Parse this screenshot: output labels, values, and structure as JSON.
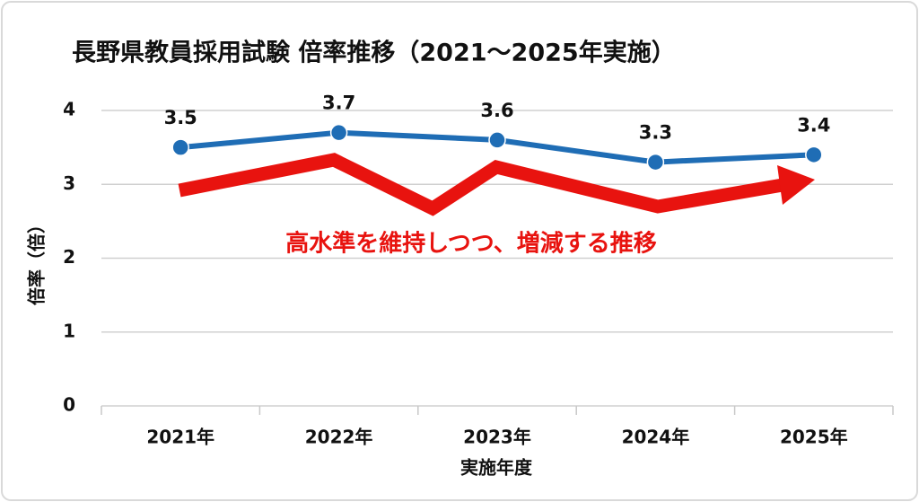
{
  "chart_data": {
    "type": "line",
    "title": "長野県教員採用試験 倍率推移（2021〜2025年実施）",
    "x_label": "実施年度",
    "y_label": "倍率（倍）",
    "annotation": "高水準を維持しつつ、増減する推移",
    "categories": [
      "2021年",
      "2022年",
      "2023年",
      "2024年",
      "2025年"
    ],
    "values": [
      3.5,
      3.7,
      3.6,
      3.3,
      3.4
    ],
    "color": "#1f6db5",
    "ylim": [
      0,
      4
    ],
    "yticks": [
      0,
      1,
      2,
      3,
      4
    ],
    "grid": true
  }
}
